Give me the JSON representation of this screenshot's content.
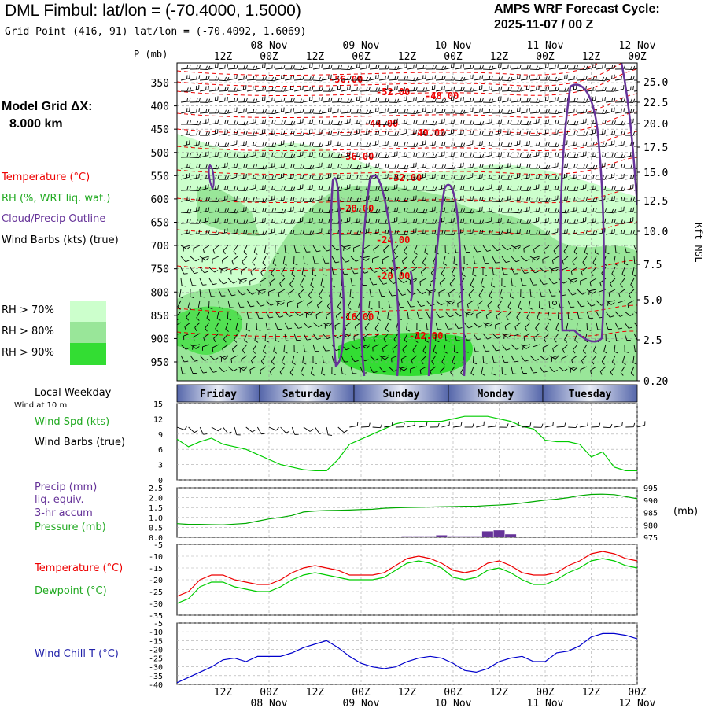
{
  "header": {
    "title": "DML Fimbul:  lat/lon = (-70.4000, 1.5000)",
    "grid_point": "Grid Point (416, 91) lat/lon = (-70.4092, 1.6069)",
    "cycle_line1": "AMPS WRF Forecast Cycle:",
    "cycle_line2": "2025-11-07 / 00  Z"
  },
  "model_grid": {
    "label": "Model Grid ΔX:",
    "value": "8.000 km"
  },
  "legends": {
    "temperature": "Temperature (°C)",
    "rh": "RH (%, WRT liq. wat.)",
    "cloud": "Cloud/Precip Outline",
    "wind_barbs": "Wind Barbs (kts) (true)",
    "rh70": "RH > 70%",
    "rh80": "RH > 80%",
    "rh90": "RH > 90%",
    "local_weekday": "Local Weekday",
    "wind_10m": "Wind at 10 m",
    "wind_spd": "Wind Spd (kts)",
    "wind_barbs_true": "Wind Barbs (true)",
    "precip": "Precip (mm)",
    "liq": "liq. equiv.",
    "accum": "3-hr accum",
    "pressure": "Pressure (mb)",
    "mb_unit": "(mb)",
    "temp2": "Temperature (°C)",
    "dewpoint": "Dewpoint (°C)",
    "windchill": "Wind Chill T (°C)",
    "p_axis_label": "P (mb)",
    "kft_label": "Kft MSL"
  },
  "colors": {
    "rh70": "#ccffcc",
    "rh80": "#99e699",
    "rh90": "#33dd33",
    "temp": "#ee0000",
    "dew": "#00cc00",
    "cloud": "#663399",
    "windchill": "#0000cc",
    "pressure": "#00aa00",
    "precip": "#663399"
  },
  "time_axis": {
    "hours": [
      "12Z",
      "00Z",
      "12Z",
      "00Z",
      "12Z",
      "00Z",
      "12Z",
      "00Z",
      "12Z",
      "00Z"
    ],
    "dates": [
      "08 Nov",
      "09 Nov",
      "10 Nov",
      "11 Nov",
      "12 Nov"
    ],
    "weekdays": [
      "Friday",
      "Saturday",
      "Sunday",
      "Monday",
      "Tuesday"
    ]
  },
  "chart_data": [
    {
      "type": "heatmap",
      "panel": "cross-section",
      "pressure_ticks": [
        "350",
        "400",
        "450",
        "500",
        "550",
        "600",
        "650",
        "700",
        "750",
        "800",
        "850",
        "900",
        "950"
      ],
      "height_ticks_kft": [
        "25.0",
        "22.5",
        "20.0",
        "17.5",
        "15.0",
        "12.5",
        "10.0",
        "7.5",
        "5.0",
        "2.5",
        "0.20"
      ],
      "temperature_contour_labels": [
        "-56.00",
        "-52.00",
        "-48.00",
        "-44.00",
        "-40.00",
        "-36.00",
        "-32.00",
        "-28.00",
        "-24.00",
        "-20.00",
        "-16.00",
        "-12.00"
      ]
    },
    {
      "type": "line",
      "panel": "wind_speed",
      "ylim": [
        0,
        15
      ],
      "yticks": [
        "0",
        "3",
        "6",
        "9",
        "12",
        "15"
      ],
      "x_hours": [
        0,
        3,
        6,
        9,
        12,
        15,
        18,
        21,
        24,
        27,
        30,
        33,
        36,
        39,
        42,
        45,
        48,
        51,
        54,
        57,
        60,
        63,
        66,
        69,
        72,
        75,
        78,
        81,
        84,
        87,
        90,
        93,
        96,
        99,
        102,
        105,
        108,
        111,
        114,
        117,
        120
      ],
      "values": [
        8,
        6.5,
        7.5,
        8.2,
        7,
        6.5,
        6,
        5,
        4,
        3,
        2.5,
        2,
        1.8,
        1.8,
        4,
        7,
        8,
        9,
        10,
        11,
        11.5,
        11.5,
        11.5,
        11.5,
        12,
        12.5,
        12.5,
        12.5,
        12,
        11.5,
        10.5,
        10,
        7.8,
        7.5,
        7.5,
        7,
        4.5,
        5.5,
        2.5,
        1.8,
        1.8
      ]
    },
    {
      "type": "bar",
      "panel": "precip_pressure",
      "precip_ylim": [
        0,
        2.5
      ],
      "precip_yticks": [
        "0.0",
        "0.5",
        "1.0",
        "1.5",
        "2.0",
        "2.5"
      ],
      "pressure_ylim": [
        975,
        995
      ],
      "pressure_yticks": [
        "975",
        "980",
        "985",
        "990",
        "995"
      ],
      "x_hours": [
        0,
        3,
        6,
        9,
        12,
        15,
        18,
        21,
        24,
        27,
        30,
        33,
        36,
        39,
        42,
        45,
        48,
        51,
        54,
        57,
        60,
        63,
        66,
        69,
        72,
        75,
        78,
        81,
        84,
        87,
        90,
        93,
        96,
        99,
        102,
        105,
        108,
        111,
        114,
        117,
        120
      ],
      "precip_mm": [
        0,
        0,
        0,
        0,
        0,
        0,
        0,
        0,
        0,
        0,
        0,
        0,
        0,
        0,
        0,
        0,
        0,
        0,
        0,
        0,
        0.05,
        0.05,
        0.05,
        0.1,
        0.05,
        0.05,
        0.05,
        0.3,
        0.35,
        0.15,
        0,
        0,
        0,
        0,
        0,
        0,
        0,
        0,
        0,
        0,
        0
      ],
      "pressure_mb": [
        980.5,
        980.2,
        980.2,
        980.1,
        980.0,
        980.3,
        980.6,
        981.5,
        982.4,
        983.0,
        983.8,
        985.2,
        985.6,
        985.8,
        985.9,
        986.0,
        986.2,
        986.3,
        986.7,
        986.9,
        987.0,
        987.1,
        987.2,
        987.3,
        987.4,
        987.5,
        987.5,
        987.8,
        988.0,
        988.3,
        988.8,
        989.4,
        990.0,
        990.4,
        991.0,
        991.8,
        992.3,
        992.4,
        992.2,
        991.4,
        990.6
      ]
    },
    {
      "type": "line",
      "panel": "temperature_dewpoint",
      "ylim": [
        -35,
        -5
      ],
      "yticks": [
        "-5",
        "-10",
        "-15",
        "-20",
        "-25",
        "-30",
        "-35"
      ],
      "x_hours": [
        0,
        3,
        6,
        9,
        12,
        15,
        18,
        21,
        24,
        27,
        30,
        33,
        36,
        39,
        42,
        45,
        48,
        51,
        54,
        57,
        60,
        63,
        66,
        69,
        72,
        75,
        78,
        81,
        84,
        87,
        90,
        93,
        96,
        99,
        102,
        105,
        108,
        111,
        114,
        117,
        120
      ],
      "series": [
        {
          "name": "Temperature",
          "values": [
            -27,
            -25,
            -20,
            -18,
            -18,
            -20,
            -21,
            -22,
            -22,
            -20,
            -17,
            -15,
            -14,
            -15,
            -16,
            -18,
            -18,
            -18,
            -17,
            -14,
            -11,
            -10,
            -11,
            -13,
            -16,
            -17,
            -16,
            -13,
            -12,
            -14,
            -17,
            -18,
            -18,
            -17,
            -14,
            -12,
            -9,
            -8,
            -9,
            -11,
            -12
          ]
        },
        {
          "name": "Dewpoint",
          "values": [
            -30,
            -28,
            -23,
            -21,
            -21,
            -23,
            -24,
            -25,
            -25,
            -23,
            -20,
            -18,
            -17,
            -18,
            -19,
            -20,
            -20,
            -20,
            -19,
            -16,
            -13,
            -12,
            -13,
            -15,
            -19,
            -20,
            -19,
            -16,
            -15,
            -17,
            -20,
            -22,
            -22,
            -20,
            -17,
            -15,
            -12,
            -11,
            -12,
            -14,
            -15
          ]
        }
      ]
    },
    {
      "type": "line",
      "panel": "wind_chill",
      "ylim": [
        -40,
        -5
      ],
      "yticks": [
        "-5",
        "-10",
        "-15",
        "-20",
        "-25",
        "-30",
        "-35",
        "-40"
      ],
      "x_hours": [
        0,
        3,
        6,
        9,
        12,
        15,
        18,
        21,
        24,
        27,
        30,
        33,
        36,
        39,
        42,
        45,
        48,
        51,
        54,
        57,
        60,
        63,
        66,
        69,
        72,
        75,
        78,
        81,
        84,
        87,
        90,
        93,
        96,
        99,
        102,
        105,
        108,
        111,
        114,
        117,
        120
      ],
      "values": [
        -39,
        -36,
        -33,
        -30,
        -26,
        -25,
        -27,
        -24,
        -24,
        -24,
        -22,
        -19,
        -17,
        -15,
        -19,
        -24,
        -28,
        -30,
        -31,
        -30,
        -27,
        -25,
        -24,
        -25,
        -28,
        -32,
        -33,
        -31,
        -27,
        -25,
        -24,
        -27,
        -27,
        -22,
        -21,
        -18,
        -13,
        -11,
        -11,
        -12,
        -14
      ]
    }
  ]
}
